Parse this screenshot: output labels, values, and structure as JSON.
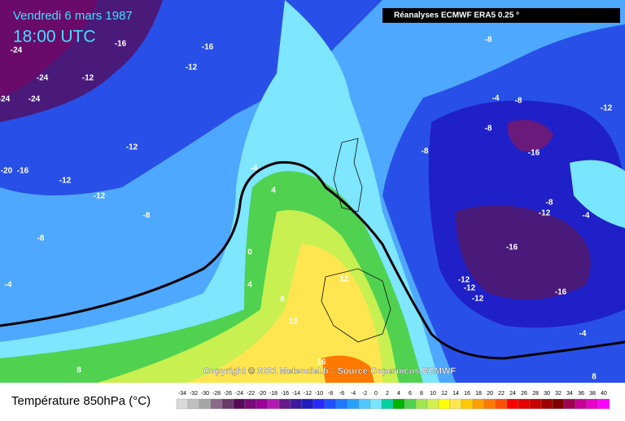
{
  "header": {
    "date": "Vendredi 6 mars 1987",
    "time": "18:00 UTC",
    "source_box": "Réanalyses ECMWF ERA5 0.25 °"
  },
  "copyright": "Copyright © 2021 Meteociel.fr - Source Copernicus ECMWF",
  "map": {
    "contour_labels": [
      -24,
      -24,
      -24,
      -24,
      -16,
      -16,
      -12,
      -12,
      -12,
      -12,
      -12,
      -20,
      -16,
      -8,
      -8,
      -4,
      -4,
      4,
      0,
      4,
      8,
      12,
      12,
      16,
      8,
      -8,
      -4,
      -8,
      -12,
      -8,
      -8,
      -16,
      -8,
      -12,
      -4,
      -16,
      -12,
      -12,
      -12,
      -16,
      -4,
      8
    ]
  },
  "legend": {
    "title": "Température 850hPa (°C)",
    "ticks": [
      -34,
      -32,
      -30,
      -28,
      -26,
      -24,
      -22,
      -20,
      -18,
      -16,
      -14,
      -12,
      -10,
      -8,
      -6,
      -4,
      -2,
      0,
      2,
      4,
      6,
      8,
      10,
      12,
      14,
      16,
      18,
      20,
      22,
      24,
      26,
      28,
      30,
      32,
      34,
      36,
      38,
      40
    ],
    "colors": [
      "#d9d9d9",
      "#bfbfbf",
      "#a6a6a6",
      "#8a6a8a",
      "#6a3a6a",
      "#5a0a5a",
      "#7a0a7a",
      "#990099",
      "#b31ab3",
      "#6a1a8a",
      "#3c1aa0",
      "#1e1ebe",
      "#2828ff",
      "#1e50ff",
      "#1e78ff",
      "#28a0ff",
      "#50c8ff",
      "#78e6ff",
      "#00d2a0",
      "#00b400",
      "#50d250",
      "#a0e650",
      "#d2f050",
      "#ffff00",
      "#ffe650",
      "#ffc800",
      "#ffa000",
      "#ff7800",
      "#ff5000",
      "#ff0000",
      "#e60000",
      "#c80000",
      "#a00000",
      "#800000",
      "#a00050",
      "#c80096",
      "#e600c8",
      "#ff00ff"
    ]
  }
}
